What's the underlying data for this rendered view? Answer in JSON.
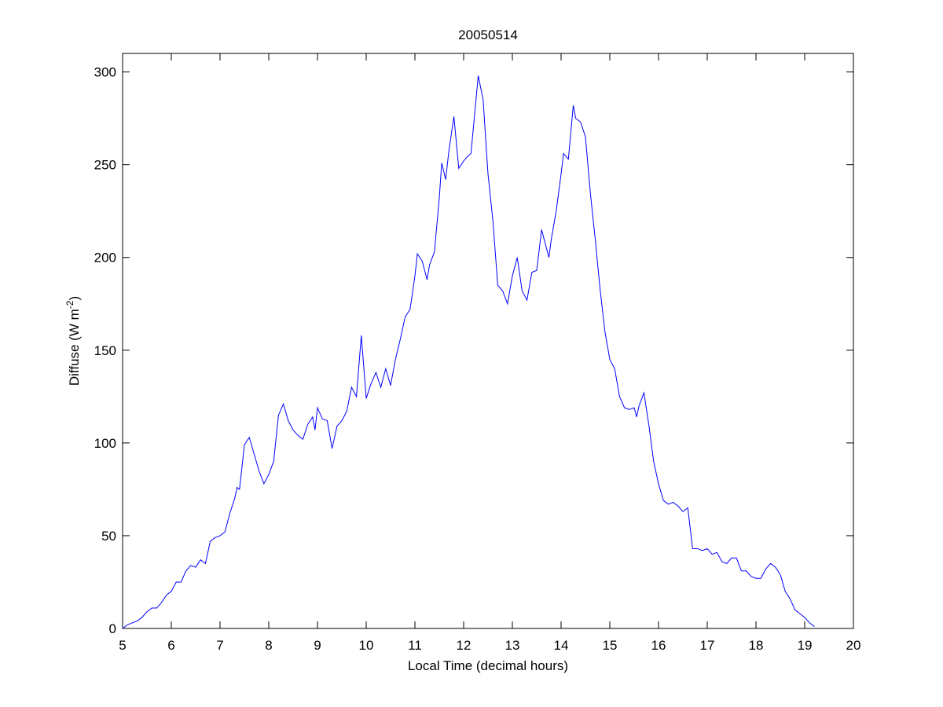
{
  "chart_data": {
    "type": "line",
    "title": "20050514",
    "xlabel": "Local Time (decimal hours)",
    "ylabel": [
      "Diffuse (W m",
      "-2",
      ")"
    ],
    "xlim": [
      5,
      20
    ],
    "ylim": [
      0,
      310
    ],
    "xticks": [
      5,
      6,
      7,
      8,
      9,
      10,
      11,
      12,
      13,
      14,
      15,
      16,
      17,
      18,
      19,
      20
    ],
    "yticks": [
      0,
      50,
      100,
      150,
      200,
      250,
      300
    ],
    "grid": false,
    "x": [
      5.0,
      5.1,
      5.2,
      5.3,
      5.4,
      5.5,
      5.6,
      5.7,
      5.8,
      5.9,
      6.0,
      6.1,
      6.2,
      6.3,
      6.4,
      6.5,
      6.6,
      6.7,
      6.8,
      6.9,
      7.0,
      7.1,
      7.2,
      7.3,
      7.35,
      7.4,
      7.5,
      7.55,
      7.6,
      7.7,
      7.8,
      7.9,
      8.0,
      8.1,
      8.2,
      8.3,
      8.4,
      8.5,
      8.6,
      8.7,
      8.8,
      8.9,
      8.95,
      9.0,
      9.1,
      9.2,
      9.3,
      9.4,
      9.5,
      9.6,
      9.7,
      9.8,
      9.9,
      10.0,
      10.1,
      10.2,
      10.3,
      10.4,
      10.5,
      10.6,
      10.7,
      10.8,
      10.9,
      11.0,
      11.05,
      11.15,
      11.25,
      11.3,
      11.4,
      11.5,
      11.55,
      11.63,
      11.7,
      11.8,
      11.9,
      12.0,
      12.1,
      12.15,
      12.3,
      12.4,
      12.5,
      12.6,
      12.7,
      12.8,
      12.9,
      13.0,
      13.1,
      13.2,
      13.3,
      13.4,
      13.5,
      13.6,
      13.7,
      13.75,
      13.8,
      13.9,
      14.0,
      14.05,
      14.15,
      14.25,
      14.3,
      14.4,
      14.5,
      14.6,
      14.7,
      14.8,
      14.9,
      15.0,
      15.1,
      15.2,
      15.3,
      15.4,
      15.5,
      15.55,
      15.6,
      15.7,
      15.8,
      15.9,
      16.0,
      16.1,
      16.2,
      16.3,
      16.4,
      16.5,
      16.6,
      16.7,
      16.8,
      16.9,
      17.0,
      17.1,
      17.2,
      17.3,
      17.4,
      17.5,
      17.6,
      17.7,
      17.8,
      17.9,
      18.0,
      18.1,
      18.2,
      18.3,
      18.4,
      18.5,
      18.6,
      18.7,
      18.8,
      18.9,
      19.0,
      19.1,
      19.2
    ],
    "series": [
      {
        "color": "#0000ff",
        "values": [
          0,
          2,
          3,
          4,
          6,
          9,
          11,
          11,
          14,
          18,
          20,
          25,
          25,
          31,
          34,
          33,
          37,
          35,
          47,
          49,
          50,
          52,
          62,
          70,
          76,
          75,
          99,
          101,
          103,
          94,
          85,
          78,
          83,
          90,
          115,
          121,
          112,
          107,
          104,
          102,
          110,
          114,
          107,
          119,
          113,
          112,
          97,
          109,
          112,
          117,
          130,
          125,
          158,
          124,
          132,
          138,
          130,
          140,
          131,
          145,
          156,
          168,
          172,
          190,
          202,
          198,
          188,
          196,
          203,
          232,
          251,
          242,
          258,
          276,
          248,
          252,
          255,
          256,
          298,
          285,
          245,
          220,
          185,
          182,
          175,
          190,
          200,
          182,
          177,
          192,
          193,
          215,
          205,
          200,
          210,
          225,
          245,
          256,
          253,
          282,
          275,
          273,
          265,
          235,
          210,
          183,
          160,
          145,
          140,
          125,
          119,
          118,
          119,
          114,
          120,
          127,
          110,
          90,
          78,
          69,
          67,
          68,
          66,
          63,
          65,
          43,
          43,
          42,
          43,
          40,
          41,
          36,
          35,
          38,
          38,
          31,
          31,
          28,
          27,
          27,
          32,
          35,
          33,
          29,
          20,
          16,
          10,
          8,
          6,
          3,
          1
        ]
      }
    ]
  }
}
